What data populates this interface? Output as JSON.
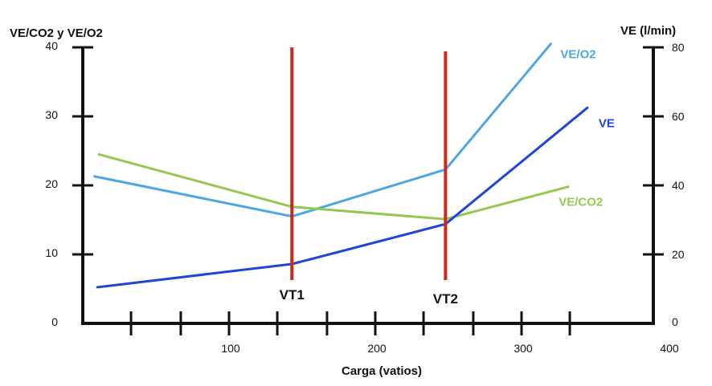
{
  "chart_data": {
    "type": "line",
    "y_left": {
      "label": "VE/CO2 y VE/O2",
      "range": [
        0,
        40
      ],
      "ticks": [
        0,
        10,
        20,
        30,
        40
      ]
    },
    "y_right": {
      "label": "VE (l/min)",
      "range": [
        0,
        80
      ],
      "ticks": [
        0,
        20,
        40,
        60,
        80
      ]
    },
    "x_axis": {
      "label": "Carga (vatios)",
      "range": [
        0,
        400
      ],
      "tick_labels": [
        100,
        200,
        300,
        400
      ],
      "minor_ticks": [
        33,
        67,
        100,
        133,
        167,
        200,
        233,
        267,
        300,
        333
      ]
    },
    "thresholds": [
      {
        "label": "VT1",
        "x": 143
      },
      {
        "label": "VT2",
        "x": 248
      }
    ],
    "series": [
      {
        "name": "VE/O2",
        "axis": "left",
        "color": "#4aa8e0",
        "points": [
          [
            8,
            21.3
          ],
          [
            143,
            15.5
          ],
          [
            248,
            22.3
          ],
          [
            320,
            40.5
          ]
        ]
      },
      {
        "name": "VE/CO2",
        "axis": "left",
        "color": "#93c94e",
        "points": [
          [
            11,
            24.5
          ],
          [
            143,
            16.9
          ],
          [
            248,
            15.1
          ],
          [
            332,
            19.8
          ]
        ]
      },
      {
        "name": "VE",
        "axis": "right",
        "color": "#1f44d8",
        "points": [
          [
            10,
            10.5
          ],
          [
            143,
            17.2
          ],
          [
            248,
            28.8
          ],
          [
            345,
            62.5
          ]
        ]
      }
    ],
    "colors": {
      "axes": "#111111",
      "thresholds": "#cc2a1e"
    },
    "grid": false,
    "legend": "inline labels at line ends"
  }
}
